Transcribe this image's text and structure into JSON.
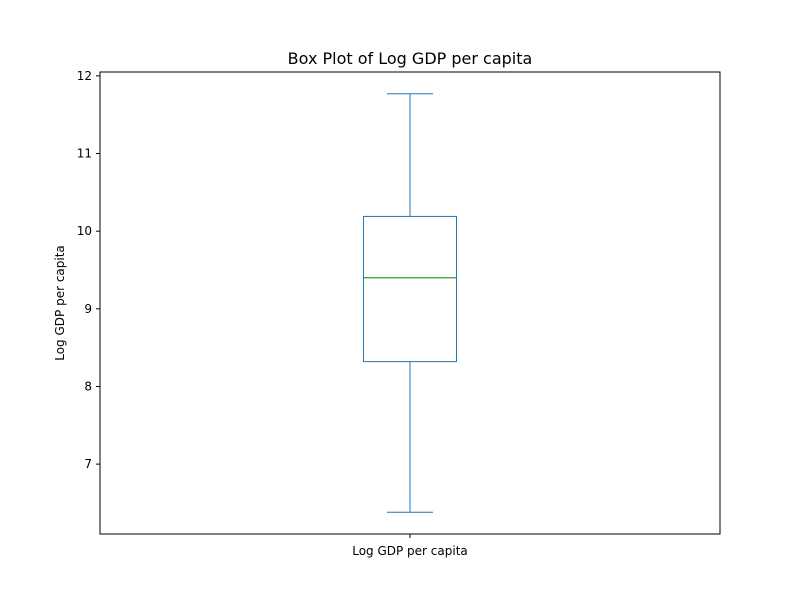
{
  "chart_data": {
    "type": "box",
    "title": "Box Plot of Log GDP per capita",
    "xlabel": "",
    "ylabel": "Log GDP per capita",
    "categories": [
      "Log GDP per capita"
    ],
    "boxes": [
      {
        "whisker_low": 6.38,
        "q1": 8.32,
        "median": 9.4,
        "q3": 10.19,
        "whisker_high": 11.77
      }
    ],
    "ylim": [
      6.1,
      12.05
    ],
    "yticks": [
      7,
      8,
      9,
      10,
      11,
      12
    ],
    "grid": false,
    "legend": "none",
    "colors": {
      "box": "#1f77b4",
      "median": "#2ca02c",
      "axes": "#000000"
    }
  }
}
